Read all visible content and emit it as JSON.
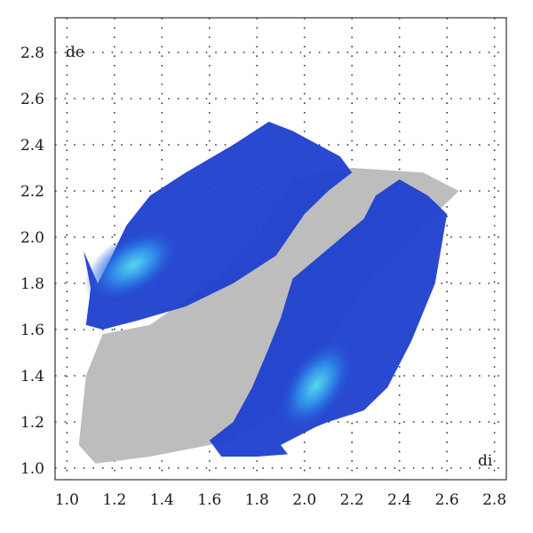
{
  "chart_data": {
    "type": "heatmap",
    "title": "",
    "xlabel": "di",
    "ylabel": "de",
    "xlim": [
      0.95,
      2.85
    ],
    "ylim": [
      0.95,
      2.95
    ],
    "xticks": [
      "1.0",
      "1.2",
      "1.4",
      "1.6",
      "1.8",
      "2.0",
      "2.2",
      "2.4",
      "2.6",
      "2.8"
    ],
    "yticks": [
      "1.0",
      "1.2",
      "1.4",
      "1.6",
      "1.8",
      "2.0",
      "2.2",
      "2.4",
      "2.6",
      "2.8"
    ],
    "grid": "dotted",
    "colors": {
      "background_fill": "#bdbdbd",
      "density_low": "#1f3fcf",
      "density_mid": "#2f86e8",
      "density_high": "#4fd0e8",
      "grid": "#333333"
    },
    "regions": [
      {
        "name": "grey",
        "polygon": [
          [
            1.05,
            1.1
          ],
          [
            1.12,
            1.02
          ],
          [
            1.35,
            1.05
          ],
          [
            1.7,
            1.12
          ],
          [
            1.95,
            1.3
          ],
          [
            2.1,
            1.55
          ],
          [
            2.3,
            1.85
          ],
          [
            2.5,
            2.05
          ],
          [
            2.65,
            2.2
          ],
          [
            2.5,
            2.28
          ],
          [
            2.2,
            2.3
          ],
          [
            1.95,
            2.25
          ],
          [
            1.8,
            2.0
          ],
          [
            1.6,
            1.8
          ],
          [
            1.35,
            1.62
          ],
          [
            1.15,
            1.58
          ],
          [
            1.08,
            1.4
          ]
        ]
      },
      {
        "name": "blue_upper_wing",
        "polygon": [
          [
            1.07,
            1.94
          ],
          [
            1.1,
            1.78
          ],
          [
            1.08,
            1.62
          ],
          [
            1.15,
            1.6
          ],
          [
            1.3,
            1.64
          ],
          [
            1.5,
            1.7
          ],
          [
            1.7,
            1.8
          ],
          [
            1.88,
            1.92
          ],
          [
            2.0,
            2.1
          ],
          [
            2.1,
            2.2
          ],
          [
            2.2,
            2.28
          ],
          [
            2.15,
            2.35
          ],
          [
            1.95,
            2.46
          ],
          [
            1.85,
            2.5
          ],
          [
            1.7,
            2.4
          ],
          [
            1.5,
            2.28
          ],
          [
            1.35,
            2.18
          ],
          [
            1.25,
            2.05
          ],
          [
            1.18,
            1.9
          ],
          [
            1.13,
            1.8
          ]
        ]
      },
      {
        "name": "blue_lower_wing",
        "polygon": [
          [
            1.6,
            1.12
          ],
          [
            1.65,
            1.05
          ],
          [
            1.8,
            1.05
          ],
          [
            1.93,
            1.06
          ],
          [
            1.9,
            1.1
          ],
          [
            2.05,
            1.18
          ],
          [
            2.1,
            1.2
          ],
          [
            2.25,
            1.25
          ],
          [
            2.35,
            1.35
          ],
          [
            2.45,
            1.55
          ],
          [
            2.55,
            1.8
          ],
          [
            2.6,
            2.1
          ],
          [
            2.52,
            2.18
          ],
          [
            2.4,
            2.25
          ],
          [
            2.3,
            2.18
          ],
          [
            2.25,
            2.08
          ],
          [
            2.1,
            1.95
          ],
          [
            1.95,
            1.82
          ],
          [
            1.9,
            1.65
          ],
          [
            1.85,
            1.52
          ],
          [
            1.78,
            1.35
          ],
          [
            1.7,
            1.2
          ]
        ]
      }
    ],
    "density_peaks": [
      {
        "name": "upper_peak",
        "di": 1.28,
        "de": 1.88
      },
      {
        "name": "lower_peak",
        "di": 2.05,
        "de": 1.36
      }
    ]
  }
}
